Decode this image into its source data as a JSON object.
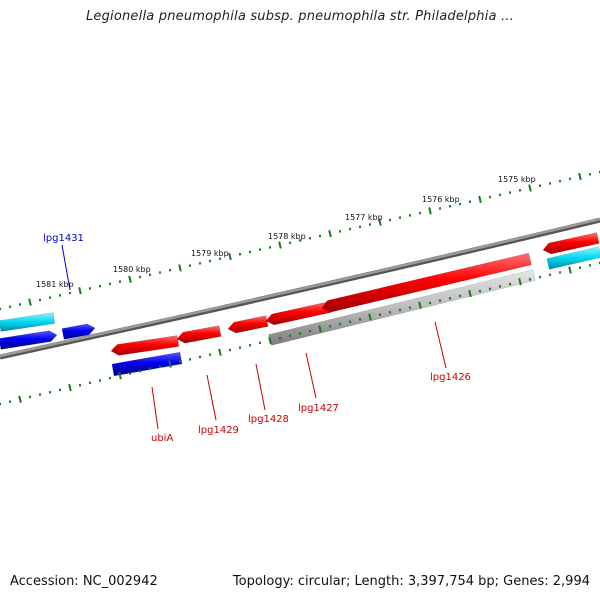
{
  "title": "Legionella pneumophila subsp. pneumophila str. Philadelphia ...",
  "footer": {
    "accession": "Accession: NC_002942",
    "summary": "Topology: circular; Length: 3,397,754 bp; Genes: 2,994"
  },
  "scale_labels": [
    "1581 kbp",
    "1580 kbp",
    "1579 kbp",
    "1578 kbp",
    "1577 kbp",
    "1576 kbp",
    "1575 kbp"
  ],
  "gene_labels": {
    "lpg1431": "lpg1431",
    "ubiA": "ubiA",
    "lpg1429": "lpg1429",
    "lpg1428": "lpg1428",
    "lpg1427": "lpg1427",
    "lpg1426": "lpg1426"
  },
  "colors": {
    "forward_cds": "#ff0000",
    "reverse_cds": "#0000ff",
    "cyan_feature": "#00c8e8",
    "gray_feature": "#b0b0b0",
    "backbone": "#808080",
    "tick": "#1a7a1a",
    "label_blue": "#0000cc",
    "label_red": "#cc0000"
  }
}
